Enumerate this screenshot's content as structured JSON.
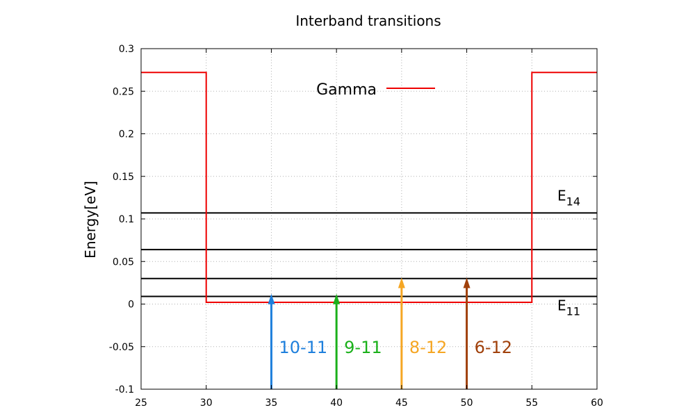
{
  "chart_data": {
    "type": "line",
    "title": "Interband transitions",
    "xlabel": "",
    "ylabel": "Energy[eV]",
    "xlim": [
      25,
      60
    ],
    "ylim": [
      -0.1,
      0.3
    ],
    "x_ticks": [
      "25",
      "30",
      "35",
      "40",
      "45",
      "50",
      "55",
      "60"
    ],
    "y_ticks": [
      "-0.1",
      "-0.05",
      "0",
      "0.05",
      "0.1",
      "0.15",
      "0.2",
      "0.25",
      "0.3"
    ],
    "grid": true,
    "legend": {
      "placement": "top-center",
      "entries": [
        {
          "name": "Gamma",
          "color": "#ee0000"
        }
      ]
    },
    "series": [
      {
        "name": "Gamma",
        "color": "#ee0000",
        "x": [
          25,
          30,
          30,
          55,
          55,
          60
        ],
        "y": [
          0.272,
          0.272,
          0.002,
          0.002,
          0.272,
          0.272
        ]
      }
    ],
    "levels": [
      {
        "y": 0.009,
        "label": "E",
        "sub": "11"
      },
      {
        "y": 0.03,
        "label": "",
        "sub": ""
      },
      {
        "y": 0.064,
        "label": "",
        "sub": ""
      },
      {
        "y": 0.107,
        "label": "E",
        "sub": "14"
      }
    ],
    "transitions": [
      {
        "x": 35,
        "y_from": -0.1,
        "y_to": 0.012,
        "label": "10-11",
        "color": "#1e7fdc"
      },
      {
        "x": 40,
        "y_from": -0.1,
        "y_to": 0.012,
        "label": "9-11",
        "color": "#1ab01a"
      },
      {
        "x": 45,
        "y_from": -0.1,
        "y_to": 0.031,
        "label": "8-12",
        "color": "#f5a623"
      },
      {
        "x": 50,
        "y_from": -0.1,
        "y_to": 0.031,
        "label": "6-12",
        "color": "#a0400a"
      }
    ]
  }
}
